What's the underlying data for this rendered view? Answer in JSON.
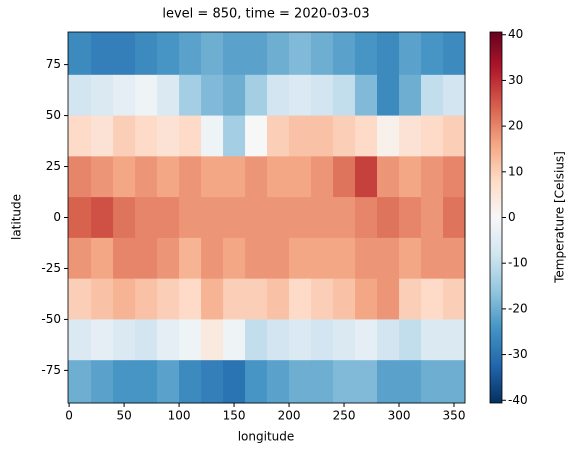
{
  "chart_data": {
    "type": "heatmap",
    "title": "level = 850, time = 2020-03-03",
    "x_label": "longitude",
    "y_label": "latitude",
    "colorbar_label": "Temperature [Celsius]",
    "colormap": "RdBu_r",
    "x": [
      10,
      30,
      50,
      70,
      90,
      110,
      130,
      150,
      170,
      190,
      210,
      230,
      250,
      270,
      290,
      310,
      330,
      350
    ],
    "y": [
      80,
      60,
      40,
      20,
      0,
      -20,
      -40,
      -60,
      -80
    ],
    "z": [
      [
        -26,
        -28,
        -28,
        -26,
        -24,
        -22,
        -20,
        -22,
        -22,
        -20,
        -18,
        -20,
        -22,
        -24,
        -26,
        -22,
        -24,
        -26
      ],
      [
        -8,
        -6,
        -4,
        -2,
        -6,
        -14,
        -18,
        -20,
        -14,
        -8,
        -6,
        -8,
        -10,
        -18,
        -26,
        -20,
        -10,
        -8
      ],
      [
        8,
        6,
        10,
        8,
        6,
        8,
        -2,
        -14,
        0,
        10,
        12,
        12,
        10,
        8,
        2,
        6,
        8,
        10
      ],
      [
        20,
        18,
        16,
        18,
        16,
        18,
        16,
        16,
        18,
        16,
        16,
        18,
        22,
        28,
        18,
        16,
        18,
        20
      ],
      [
        24,
        26,
        22,
        20,
        20,
        18,
        18,
        18,
        18,
        18,
        18,
        18,
        18,
        20,
        22,
        20,
        18,
        22
      ],
      [
        18,
        16,
        20,
        20,
        18,
        14,
        18,
        16,
        18,
        18,
        16,
        16,
        16,
        18,
        18,
        16,
        18,
        18
      ],
      [
        10,
        12,
        14,
        12,
        10,
        8,
        14,
        10,
        10,
        12,
        8,
        10,
        12,
        16,
        18,
        10,
        8,
        10
      ],
      [
        -6,
        -4,
        -6,
        -8,
        -4,
        -2,
        4,
        -2,
        -10,
        -8,
        -6,
        -8,
        -6,
        -4,
        -8,
        -10,
        -6,
        -6
      ],
      [
        -20,
        -22,
        -24,
        -24,
        -22,
        -26,
        -28,
        -30,
        -24,
        -22,
        -20,
        -20,
        -18,
        -18,
        -22,
        -22,
        -20,
        -20
      ]
    ],
    "xlim": [
      -1,
      360
    ],
    "ylim": [
      -91,
      91
    ],
    "xticks": [
      0,
      50,
      100,
      150,
      200,
      250,
      300,
      350
    ],
    "yticks": [
      -75,
      -50,
      -25,
      0,
      25,
      50,
      75
    ],
    "clim": [
      -40.6,
      40.6
    ],
    "cticks": [
      -40,
      -30,
      -20,
      -10,
      0,
      10,
      20,
      30,
      40
    ]
  }
}
